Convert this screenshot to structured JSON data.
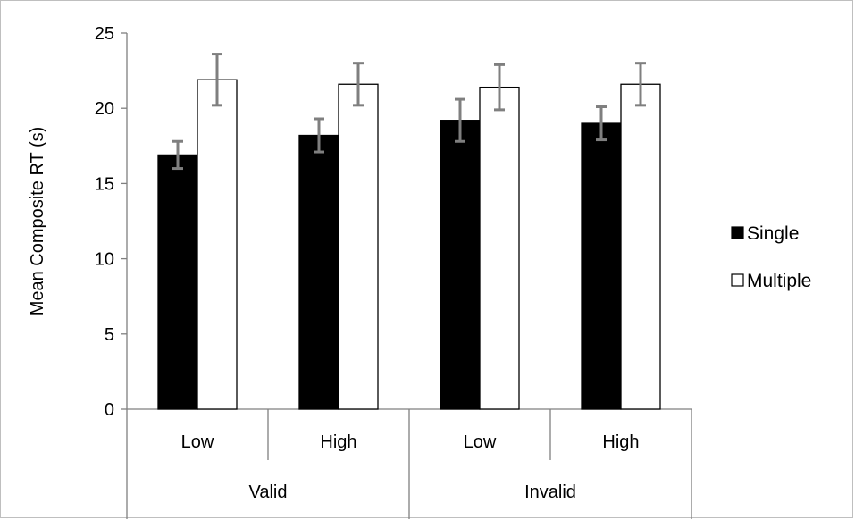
{
  "chart_data": {
    "type": "bar",
    "title": "",
    "xlabel": "",
    "ylabel": "Mean Composite RT  (s)",
    "ylim": [
      0,
      25
    ],
    "yticks": [
      0,
      5,
      10,
      15,
      20,
      25
    ],
    "grid": false,
    "legend_position": "right",
    "groups": [
      {
        "label": "Valid",
        "categories": [
          "Low",
          "High"
        ]
      },
      {
        "label": "Invalid",
        "categories": [
          "Low",
          "High"
        ]
      }
    ],
    "categories": [
      "Low",
      "High",
      "Low",
      "High"
    ],
    "series": [
      {
        "name": "Single",
        "color": "#000000",
        "values": [
          16.9,
          18.2,
          19.2,
          19.0
        ],
        "error": [
          0.9,
          1.1,
          1.4,
          1.1
        ]
      },
      {
        "name": "Multiple",
        "color": "#ffffff",
        "values": [
          21.9,
          21.6,
          21.4,
          21.6
        ],
        "error": [
          1.7,
          1.4,
          1.5,
          1.4
        ]
      }
    ],
    "colors": {
      "axis": "#7f7f7f",
      "bar_outline": "#000000",
      "error_bar": "#7f7f7f"
    }
  }
}
